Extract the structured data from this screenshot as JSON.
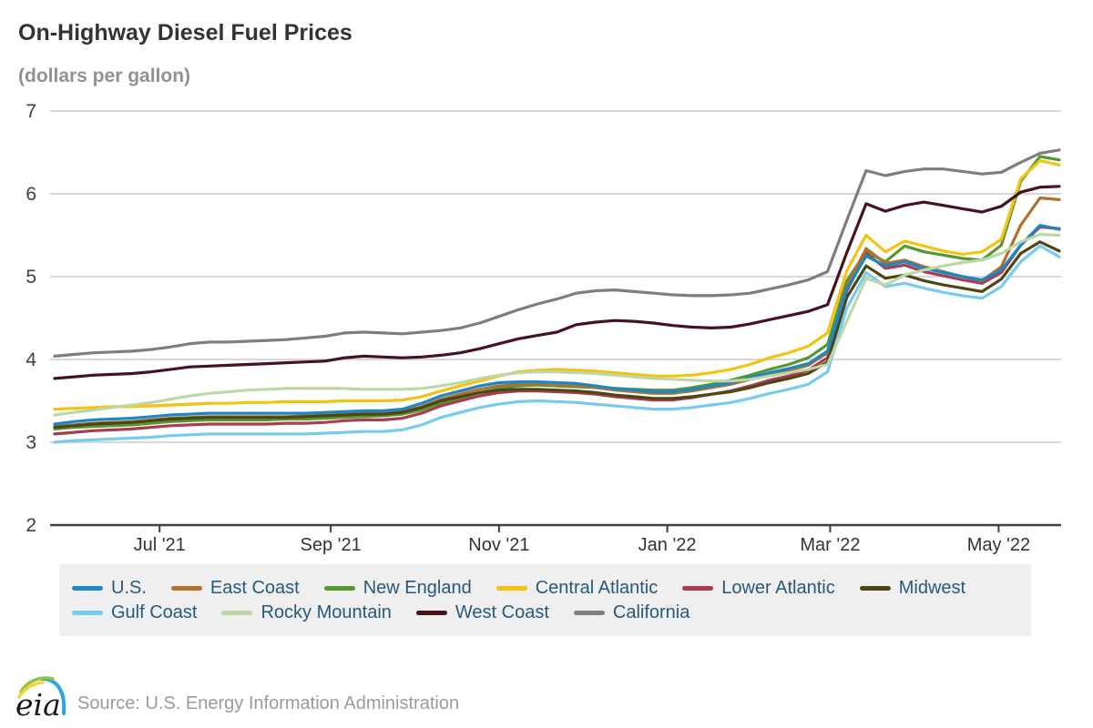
{
  "header": {
    "title": "On-Highway Diesel Fuel Prices",
    "subtitle": "(dollars per gallon)"
  },
  "footer": {
    "logo_text": "eia",
    "source": "Source: U.S. Energy Information Administration"
  },
  "legend": {
    "rows": [
      [
        0,
        1,
        2,
        3,
        4,
        5
      ],
      [
        6,
        7,
        8,
        9
      ]
    ]
  },
  "chart_data": {
    "type": "line",
    "title": "On-Highway Diesel Fuel Prices",
    "units_label": "(dollars per gallon)",
    "xlabel": "",
    "ylabel": "dollars per gallon",
    "ylim": [
      2,
      7
    ],
    "yticks": [
      2,
      3,
      4,
      5,
      6,
      7
    ],
    "grid": true,
    "legend_position": "bottom",
    "axis_color": "#3f3f3f",
    "grid_color": "#cccccc",
    "xticks": [
      {
        "label": "Jul '21",
        "week": 5.43
      },
      {
        "label": "Sep '21",
        "week": 14.29
      },
      {
        "label": "Nov '21",
        "week": 23.0
      },
      {
        "label": "Jan '22",
        "week": 31.71
      },
      {
        "label": "Mar '22",
        "week": 40.14
      },
      {
        "label": "May '22",
        "week": 48.86
      }
    ],
    "x": [
      "2021-05-24",
      "2021-05-31",
      "2021-06-07",
      "2021-06-14",
      "2021-06-21",
      "2021-06-28",
      "2021-07-05",
      "2021-07-12",
      "2021-07-19",
      "2021-07-26",
      "2021-08-02",
      "2021-08-09",
      "2021-08-16",
      "2021-08-23",
      "2021-08-30",
      "2021-09-06",
      "2021-09-13",
      "2021-09-20",
      "2021-09-27",
      "2021-10-04",
      "2021-10-11",
      "2021-10-18",
      "2021-10-25",
      "2021-11-01",
      "2021-11-08",
      "2021-11-15",
      "2021-11-22",
      "2021-11-29",
      "2021-12-06",
      "2021-12-13",
      "2021-12-20",
      "2021-12-27",
      "2022-01-03",
      "2022-01-10",
      "2022-01-17",
      "2022-01-24",
      "2022-01-31",
      "2022-02-07",
      "2022-02-14",
      "2022-02-21",
      "2022-02-28",
      "2022-03-07",
      "2022-03-14",
      "2022-03-21",
      "2022-03-28",
      "2022-04-04",
      "2022-04-11",
      "2022-04-18",
      "2022-04-25",
      "2022-05-02",
      "2022-05-09",
      "2022-05-16",
      "2022-05-23"
    ],
    "draw_order": [
      2,
      4,
      1,
      5,
      3,
      6,
      0,
      7,
      8,
      9
    ],
    "series": [
      {
        "id": "us",
        "name": "U.S.",
        "color": "#1b87c5",
        "values": [
          3.22,
          3.25,
          3.27,
          3.28,
          3.29,
          3.31,
          3.33,
          3.34,
          3.35,
          3.35,
          3.35,
          3.35,
          3.35,
          3.35,
          3.36,
          3.37,
          3.38,
          3.38,
          3.4,
          3.47,
          3.56,
          3.62,
          3.68,
          3.72,
          3.73,
          3.73,
          3.72,
          3.71,
          3.68,
          3.65,
          3.63,
          3.61,
          3.61,
          3.64,
          3.68,
          3.72,
          3.78,
          3.84,
          3.89,
          3.95,
          4.1,
          4.85,
          5.25,
          5.13,
          5.18,
          5.1,
          5.05,
          5.0,
          4.96,
          5.08,
          5.38,
          5.62,
          5.57
        ]
      },
      {
        "id": "east-coast",
        "name": "East Coast",
        "color": "#b1702d",
        "values": [
          3.19,
          3.21,
          3.23,
          3.24,
          3.25,
          3.27,
          3.29,
          3.3,
          3.31,
          3.31,
          3.31,
          3.31,
          3.31,
          3.32,
          3.33,
          3.34,
          3.35,
          3.35,
          3.37,
          3.43,
          3.52,
          3.58,
          3.64,
          3.68,
          3.7,
          3.7,
          3.69,
          3.68,
          3.66,
          3.63,
          3.61,
          3.59,
          3.59,
          3.62,
          3.66,
          3.7,
          3.76,
          3.82,
          3.87,
          3.93,
          4.08,
          4.88,
          5.34,
          5.16,
          5.2,
          5.12,
          5.06,
          5.0,
          4.95,
          5.12,
          5.62,
          5.95,
          5.93
        ]
      },
      {
        "id": "new-england",
        "name": "New England",
        "color": "#579731",
        "values": [
          3.16,
          3.18,
          3.19,
          3.2,
          3.21,
          3.23,
          3.25,
          3.26,
          3.27,
          3.27,
          3.27,
          3.27,
          3.28,
          3.28,
          3.29,
          3.3,
          3.31,
          3.32,
          3.34,
          3.39,
          3.47,
          3.53,
          3.6,
          3.65,
          3.68,
          3.69,
          3.68,
          3.67,
          3.66,
          3.65,
          3.64,
          3.63,
          3.63,
          3.66,
          3.7,
          3.75,
          3.81,
          3.88,
          3.94,
          4.02,
          4.18,
          4.95,
          5.3,
          5.18,
          5.37,
          5.3,
          5.26,
          5.22,
          5.2,
          5.38,
          6.15,
          6.45,
          6.41
        ]
      },
      {
        "id": "central-atlantic",
        "name": "Central Atlantic",
        "color": "#f5c211",
        "values": [
          3.4,
          3.41,
          3.42,
          3.43,
          3.43,
          3.44,
          3.45,
          3.46,
          3.47,
          3.47,
          3.48,
          3.48,
          3.49,
          3.49,
          3.49,
          3.5,
          3.5,
          3.5,
          3.51,
          3.55,
          3.62,
          3.68,
          3.74,
          3.8,
          3.85,
          3.87,
          3.88,
          3.87,
          3.86,
          3.84,
          3.82,
          3.8,
          3.8,
          3.81,
          3.84,
          3.88,
          3.94,
          4.02,
          4.08,
          4.16,
          4.32,
          5.07,
          5.5,
          5.3,
          5.43,
          5.37,
          5.31,
          5.27,
          5.3,
          5.45,
          6.18,
          6.4,
          6.35
        ]
      },
      {
        "id": "lower-atlantic",
        "name": "Lower Atlantic",
        "color": "#a93c50",
        "values": [
          3.1,
          3.12,
          3.14,
          3.15,
          3.16,
          3.18,
          3.2,
          3.21,
          3.22,
          3.22,
          3.22,
          3.22,
          3.23,
          3.23,
          3.24,
          3.26,
          3.27,
          3.27,
          3.29,
          3.35,
          3.44,
          3.5,
          3.56,
          3.6,
          3.62,
          3.62,
          3.61,
          3.6,
          3.58,
          3.55,
          3.53,
          3.51,
          3.51,
          3.54,
          3.58,
          3.62,
          3.68,
          3.75,
          3.8,
          3.87,
          4.02,
          4.83,
          5.28,
          5.1,
          5.14,
          5.06,
          5.01,
          4.96,
          4.92,
          5.05,
          5.38,
          5.6,
          5.58
        ]
      },
      {
        "id": "midwest",
        "name": "Midwest",
        "color": "#4d4614",
        "values": [
          3.18,
          3.2,
          3.22,
          3.23,
          3.24,
          3.26,
          3.28,
          3.29,
          3.3,
          3.3,
          3.3,
          3.3,
          3.3,
          3.31,
          3.32,
          3.33,
          3.34,
          3.34,
          3.36,
          3.42,
          3.5,
          3.55,
          3.6,
          3.63,
          3.64,
          3.64,
          3.63,
          3.62,
          3.6,
          3.57,
          3.55,
          3.53,
          3.53,
          3.55,
          3.58,
          3.61,
          3.66,
          3.72,
          3.77,
          3.83,
          3.97,
          4.75,
          5.13,
          4.98,
          5.02,
          4.95,
          4.9,
          4.86,
          4.82,
          4.97,
          5.28,
          5.42,
          5.31
        ]
      },
      {
        "id": "gulf-coast",
        "name": "Gulf Coast",
        "color": "#76cbf0",
        "values": [
          3.0,
          3.02,
          3.03,
          3.04,
          3.05,
          3.06,
          3.08,
          3.09,
          3.1,
          3.1,
          3.1,
          3.1,
          3.1,
          3.1,
          3.11,
          3.12,
          3.13,
          3.13,
          3.15,
          3.21,
          3.3,
          3.36,
          3.42,
          3.46,
          3.49,
          3.5,
          3.49,
          3.48,
          3.46,
          3.44,
          3.42,
          3.4,
          3.4,
          3.42,
          3.45,
          3.48,
          3.53,
          3.59,
          3.64,
          3.7,
          3.85,
          4.62,
          5.05,
          4.88,
          4.92,
          4.86,
          4.81,
          4.77,
          4.74,
          4.88,
          5.18,
          5.37,
          5.24
        ]
      },
      {
        "id": "rocky-mountain",
        "name": "Rocky Mountain",
        "color": "#bdd7a6",
        "values": [
          3.33,
          3.36,
          3.39,
          3.42,
          3.45,
          3.48,
          3.52,
          3.56,
          3.59,
          3.61,
          3.63,
          3.64,
          3.65,
          3.65,
          3.65,
          3.65,
          3.64,
          3.64,
          3.64,
          3.65,
          3.68,
          3.72,
          3.77,
          3.81,
          3.84,
          3.85,
          3.85,
          3.84,
          3.83,
          3.81,
          3.79,
          3.77,
          3.76,
          3.75,
          3.74,
          3.74,
          3.76,
          3.8,
          3.84,
          3.88,
          3.94,
          4.46,
          4.98,
          4.9,
          5.02,
          5.08,
          5.13,
          5.17,
          5.2,
          5.28,
          5.42,
          5.51,
          5.5
        ]
      },
      {
        "id": "west-coast",
        "name": "West Coast",
        "color": "#47121a",
        "values": [
          3.77,
          3.79,
          3.81,
          3.82,
          3.83,
          3.85,
          3.88,
          3.91,
          3.92,
          3.93,
          3.94,
          3.95,
          3.96,
          3.97,
          3.98,
          4.02,
          4.04,
          4.03,
          4.02,
          4.03,
          4.05,
          4.08,
          4.13,
          4.19,
          4.25,
          4.29,
          4.33,
          4.42,
          4.45,
          4.47,
          4.46,
          4.44,
          4.41,
          4.39,
          4.38,
          4.39,
          4.43,
          4.48,
          4.53,
          4.58,
          4.66,
          5.29,
          5.88,
          5.79,
          5.86,
          5.9,
          5.86,
          5.82,
          5.78,
          5.85,
          6.02,
          6.08,
          6.09
        ]
      },
      {
        "id": "california",
        "name": "California",
        "color": "#7e7e7e",
        "values": [
          4.04,
          4.06,
          4.08,
          4.09,
          4.1,
          4.12,
          4.15,
          4.19,
          4.21,
          4.21,
          4.22,
          4.23,
          4.24,
          4.26,
          4.28,
          4.32,
          4.33,
          4.32,
          4.31,
          4.33,
          4.35,
          4.38,
          4.44,
          4.52,
          4.6,
          4.67,
          4.73,
          4.8,
          4.83,
          4.84,
          4.82,
          4.8,
          4.78,
          4.77,
          4.77,
          4.78,
          4.8,
          4.85,
          4.9,
          4.96,
          5.06,
          5.68,
          6.28,
          6.22,
          6.27,
          6.3,
          6.3,
          6.27,
          6.24,
          6.26,
          6.38,
          6.49,
          6.53
        ]
      }
    ]
  }
}
